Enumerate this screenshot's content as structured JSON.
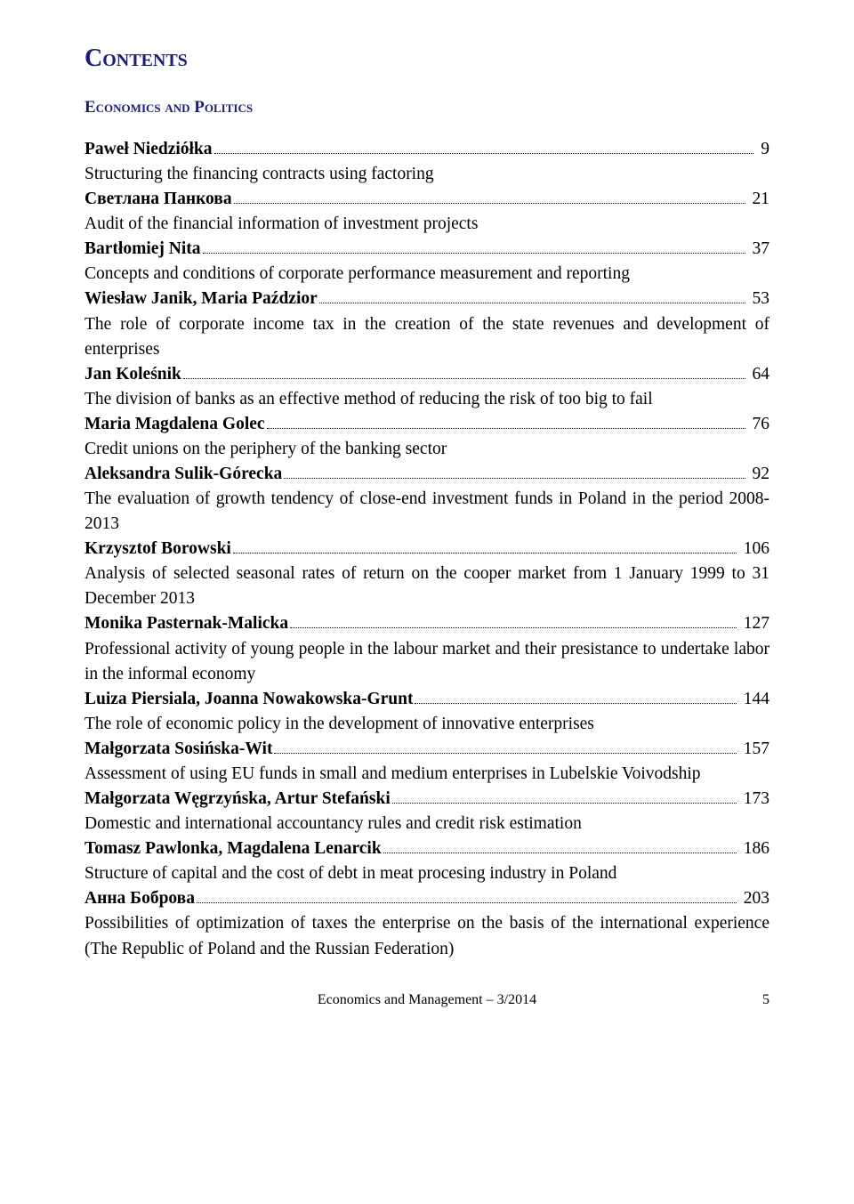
{
  "title": "Contents",
  "section": "Economics and Politics",
  "entries": [
    {
      "author": "Paweł Niedziółka",
      "page": "9",
      "desc": "Structuring the financing contracts using factoring"
    },
    {
      "author": "Светлана Панкова",
      "page": "21",
      "desc": "Audit of the financial information of investment projects"
    },
    {
      "author": "Bartłomiej Nita",
      "page": "37",
      "desc": "Concepts and conditions of corporate performance measurement and reporting"
    },
    {
      "author": "Wiesław Janik, Maria Paździor",
      "page": "53",
      "desc": "The role of corporate income tax in the creation of the state revenues and development of enterprises"
    },
    {
      "author": "Jan Koleśnik",
      "page": "64",
      "desc": "The division of banks as an effective method of reducing the risk of too big to fail"
    },
    {
      "author": "Maria Magdalena Golec",
      "page": "76",
      "desc": "Credit unions on the periphery of the banking sector"
    },
    {
      "author": "Aleksandra Sulik-Górecka",
      "page": "92",
      "desc": "The evaluation of growth tendency of close-end investment funds in Poland in the period 2008-2013"
    },
    {
      "author": "Krzysztof Borowski",
      "page": "106",
      "desc": "Analysis of selected seasonal rates of return on the cooper market from 1 January 1999 to 31 December 2013"
    },
    {
      "author": "Monika Pasternak-Malicka",
      "page": "127",
      "desc": "Professional activity of young people in the labour market and their presistance to undertake labor in the informal economy"
    },
    {
      "author": "Luiza Piersiala, Joanna Nowakowska-Grunt",
      "page": "144",
      "desc": "The role of economic policy in the development of innovative enterprises"
    },
    {
      "author": "Małgorzata Sosińska-Wit",
      "page": "157",
      "desc": "Assessment of using EU funds in small and medium enterprises in Lubelskie Voivodship"
    },
    {
      "author": "Małgorzata Węgrzyńska, Artur Stefański",
      "page": "173",
      "desc": "Domestic and international accountancy rules and credit risk estimation"
    },
    {
      "author": "Tomasz Pawlonka, Magdalena Lenarcik",
      "page": "186",
      "desc": "Structure of capital and the cost of debt in meat procesing industry in Poland"
    },
    {
      "author": "Анна Боброва",
      "page": "203",
      "desc": "Possibilities of optimization of taxes the enterprise on the basis of the international experience (The Republic of Poland and the Russian Federation)"
    }
  ],
  "footer": {
    "journal": "Economics and Management – 3/2014",
    "page": "5"
  }
}
